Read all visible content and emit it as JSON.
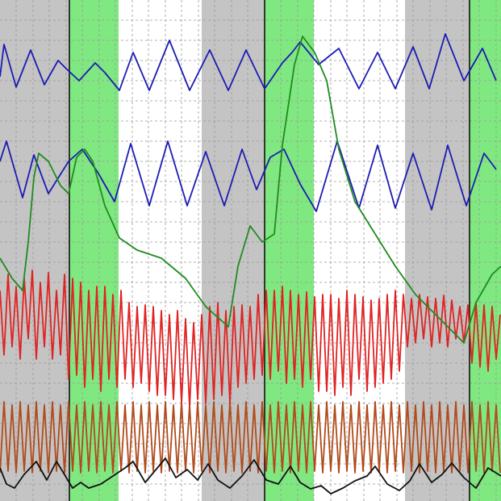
{
  "chart_data": {
    "type": "line",
    "xlim": [
      0,
      621
    ],
    "ylim": [
      621,
      0
    ],
    "xticks": [
      20,
      41,
      61,
      82,
      102,
      123,
      143,
      164,
      184,
      205,
      225,
      246,
      266,
      287,
      307,
      348,
      369,
      389,
      410,
      430,
      451,
      471,
      492,
      512,
      533,
      553,
      574,
      594,
      615
    ],
    "yticks": [
      25,
      50,
      75,
      100,
      125,
      150,
      175,
      200,
      225,
      250,
      275,
      300,
      325,
      350,
      375,
      400,
      425,
      450,
      475,
      500,
      525,
      550,
      575,
      600
    ],
    "grid": true,
    "bands": [
      {
        "x0": 0,
        "x1": 86,
        "color": "#c4c4c4"
      },
      {
        "x0": 86,
        "x1": 147,
        "color": "#80e880"
      },
      {
        "x0": 147,
        "x1": 250,
        "color": "#ffffff"
      },
      {
        "x0": 250,
        "x1": 328,
        "color": "#c4c4c4"
      },
      {
        "x0": 328,
        "x1": 389,
        "color": "#80e880"
      },
      {
        "x0": 389,
        "x1": 502,
        "color": "#ffffff"
      },
      {
        "x0": 502,
        "x1": 582,
        "color": "#c4c4c4"
      },
      {
        "x0": 582,
        "x1": 621,
        "color": "#80e880"
      }
    ],
    "markers": [
      86,
      328,
      582
    ],
    "series": [
      {
        "color": "#1c1cb4",
        "x": [
          0,
          5,
          20,
          38,
          55,
          72,
          82,
          98,
          118,
          130,
          148,
          165,
          185,
          210,
          235,
          260,
          283,
          305,
          328,
          350,
          362,
          372,
          395,
          420,
          445,
          468,
          490,
          512,
          532,
          552,
          575,
          598,
          615
        ],
        "values": [
          95,
          55,
          108,
          62,
          105,
          75,
          85,
          100,
          78,
          90,
          112,
          65,
          112,
          50,
          112,
          62,
          112,
          62,
          110,
          78,
          65,
          52,
          80,
          60,
          110,
          65,
          110,
          58,
          110,
          42,
          100,
          60,
          100
        ]
      },
      {
        "color": "#1c1cb4",
        "x": [
          0,
          8,
          28,
          42,
          60,
          85,
          102,
          122,
          142,
          162,
          185,
          208,
          232,
          255,
          278,
          300,
          318,
          335,
          352,
          372,
          392,
          418,
          445,
          468,
          490,
          512,
          535,
          555,
          578,
          600,
          615
        ],
        "values": [
          200,
          175,
          245,
          192,
          240,
          200,
          185,
          215,
          250,
          178,
          255,
          175,
          255,
          188,
          255,
          185,
          235,
          195,
          185,
          228,
          262,
          175,
          258,
          180,
          258,
          190,
          260,
          180,
          255,
          190,
          210
        ]
      },
      {
        "color": "#b04a1a",
        "x": [
          0,
          5,
          10,
          15,
          20,
          25,
          30,
          35,
          40,
          45,
          50,
          55,
          60,
          65,
          70,
          75,
          80,
          85,
          90,
          95,
          100,
          105,
          110,
          115,
          120,
          125,
          130,
          135,
          140,
          145,
          150,
          155,
          160,
          165,
          170,
          175,
          180,
          185,
          190,
          195,
          200,
          205,
          210,
          215,
          220,
          225,
          230,
          235,
          240,
          245,
          250,
          255,
          260,
          265,
          270,
          275,
          280,
          285,
          290,
          295,
          300,
          305,
          310,
          315,
          320,
          325,
          330,
          335,
          340,
          345,
          350,
          355,
          360,
          365,
          370,
          375,
          380,
          385,
          390,
          395,
          400,
          405,
          410,
          415,
          420,
          425,
          430,
          435,
          440,
          445,
          450,
          455,
          460,
          465,
          470,
          475,
          480,
          485,
          490,
          495,
          500,
          505,
          510,
          515,
          520,
          525,
          530,
          535,
          540,
          545,
          550,
          555,
          560,
          565,
          570,
          575,
          580,
          585,
          590,
          595,
          600,
          605,
          610,
          615,
          620
        ],
        "values": [
          586,
          498,
          584,
          502,
          586,
          498,
          584,
          502,
          586,
          498,
          584,
          502,
          586,
          498,
          584,
          502,
          586,
          498,
          584,
          502,
          586,
          498,
          584,
          502,
          586,
          498,
          584,
          502,
          586,
          498,
          584,
          502,
          586,
          498,
          584,
          502,
          586,
          498,
          584,
          502,
          586,
          498,
          584,
          502,
          586,
          498,
          584,
          502,
          586,
          498,
          584,
          502,
          586,
          498,
          584,
          502,
          586,
          498,
          584,
          502,
          586,
          498,
          584,
          502,
          586,
          498,
          584,
          502,
          586,
          498,
          584,
          502,
          586,
          498,
          584,
          502,
          586,
          498,
          584,
          502,
          586,
          498,
          584,
          502,
          586,
          498,
          584,
          502,
          586,
          498,
          584,
          502,
          586,
          498,
          584,
          502,
          586,
          498,
          584,
          502,
          586,
          498,
          584,
          502,
          586,
          498,
          584,
          502,
          586,
          498,
          584,
          502,
          586,
          498,
          584,
          502,
          586,
          498,
          584,
          502,
          586,
          498,
          584,
          502,
          586
        ]
      },
      {
        "color": "#e02222",
        "x": [
          0,
          5,
          10,
          15,
          20,
          25,
          30,
          35,
          40,
          45,
          50,
          55,
          60,
          65,
          70,
          75,
          80,
          85,
          90,
          95,
          100,
          105,
          110,
          115,
          120,
          125,
          130,
          135,
          140,
          145,
          150,
          155,
          160,
          165,
          170,
          175,
          180,
          185,
          190,
          195,
          200,
          205,
          210,
          215,
          220,
          225,
          230,
          235,
          240,
          245,
          250,
          255,
          260,
          265,
          270,
          275,
          280,
          285,
          290,
          295,
          300,
          305,
          310,
          315,
          320,
          325,
          330,
          335,
          340,
          345,
          350,
          355,
          360,
          365,
          370,
          375,
          380,
          385,
          390,
          395,
          400,
          405,
          410,
          415,
          420,
          425,
          430,
          435,
          440,
          445,
          450,
          455,
          460,
          465,
          470,
          475,
          480,
          485,
          490,
          495,
          500,
          505,
          510,
          515,
          520,
          525,
          530,
          535,
          540,
          545,
          550,
          555,
          560,
          565,
          570,
          575,
          580,
          585,
          590,
          595,
          600,
          605,
          610,
          615,
          620
        ],
        "values": [
          360,
          440,
          340,
          430,
          355,
          445,
          345,
          420,
          335,
          445,
          350,
          430,
          338,
          445,
          360,
          440,
          340,
          470,
          345,
          465,
          350,
          480,
          360,
          470,
          355,
          485,
          355,
          470,
          365,
          480,
          360,
          470,
          375,
          480,
          380,
          475,
          378,
          485,
          380,
          490,
          385,
          490,
          390,
          495,
          385,
          500,
          395,
          505,
          400,
          495,
          390,
          500,
          380,
          495,
          375,
          490,
          385,
          500,
          380,
          480,
          378,
          475,
          380,
          470,
          365,
          465,
          360,
          470,
          360,
          460,
          355,
          475,
          360,
          470,
          365,
          480,
          362,
          470,
          368,
          485,
          365,
          485,
          365,
          490,
          370,
          480,
          360,
          490,
          365,
          470,
          368,
          485,
          372,
          480,
          370,
          475,
          365,
          470,
          360,
          460,
          365,
          430,
          370,
          425,
          365,
          420,
          368,
          430,
          370,
          425,
          366,
          430,
          372,
          420,
          380,
          425,
          378,
          450,
          375,
          455,
          378,
          460,
          380,
          445,
          390
        ]
      },
      {
        "color": "#1e8c1e",
        "x": [
          0,
          15,
          28,
          35,
          42,
          48,
          60,
          75,
          85,
          95,
          105,
          115,
          130,
          148,
          170,
          200,
          230,
          255,
          283,
          295,
          310,
          325,
          340,
          350,
          365,
          375,
          390,
          405,
          420,
          440,
          465,
          490,
          515,
          540,
          560,
          575,
          590,
          610,
          621
        ],
        "values": [
          320,
          345,
          360,
          300,
          220,
          190,
          200,
          230,
          240,
          195,
          185,
          200,
          255,
          295,
          310,
          320,
          345,
          380,
          405,
          330,
          280,
          300,
          290,
          180,
          80,
          45,
          65,
          100,
          185,
          250,
          290,
          330,
          365,
          390,
          410,
          425,
          375,
          340,
          330
        ]
      },
      {
        "color": "#111111",
        "x": [
          0,
          8,
          18,
          30,
          45,
          58,
          70,
          78,
          90,
          100,
          110,
          125,
          140,
          155,
          165,
          180,
          195,
          205,
          218,
          232,
          245,
          258,
          270,
          285,
          300,
          315,
          330,
          345,
          360,
          372,
          385,
          398,
          410,
          425,
          440,
          455,
          465,
          480,
          495,
          508,
          520,
          535,
          548,
          560,
          575,
          590,
          605,
          621
        ],
        "values": [
          580,
          600,
          605,
          588,
          572,
          595,
          572,
          585,
          605,
          598,
          605,
          600,
          590,
          580,
          572,
          598,
          580,
          568,
          592,
          582,
          595,
          575,
          595,
          605,
          590,
          570,
          595,
          600,
          578,
          598,
          606,
          602,
          612,
          605,
          596,
          590,
          578,
          600,
          608,
          596,
          575,
          598,
          588,
          574,
          592,
          605,
          580,
          590
        ]
      }
    ]
  }
}
